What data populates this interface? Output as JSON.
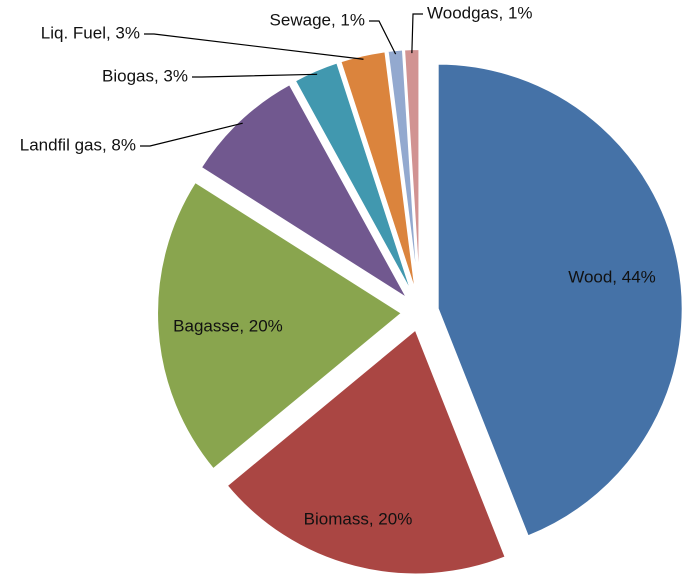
{
  "chart_data": {
    "type": "pie",
    "values": [
      44,
      20,
      20,
      8,
      3,
      3,
      1,
      1
    ],
    "value_labels": [
      "Wood, 44%",
      "Biomass, 20%",
      "Bagasse, 20%",
      "Landfil gas, 8%",
      "Biogas, 3%",
      "Liq. Fuel, 3%",
      "Sewage, 1%",
      "Woodgas, 1%"
    ],
    "colors": [
      "#4572a7",
      "#aa4643",
      "#89a54e",
      "#71588f",
      "#4198af",
      "#db843d",
      "#93a9cf",
      "#d19392"
    ]
  }
}
